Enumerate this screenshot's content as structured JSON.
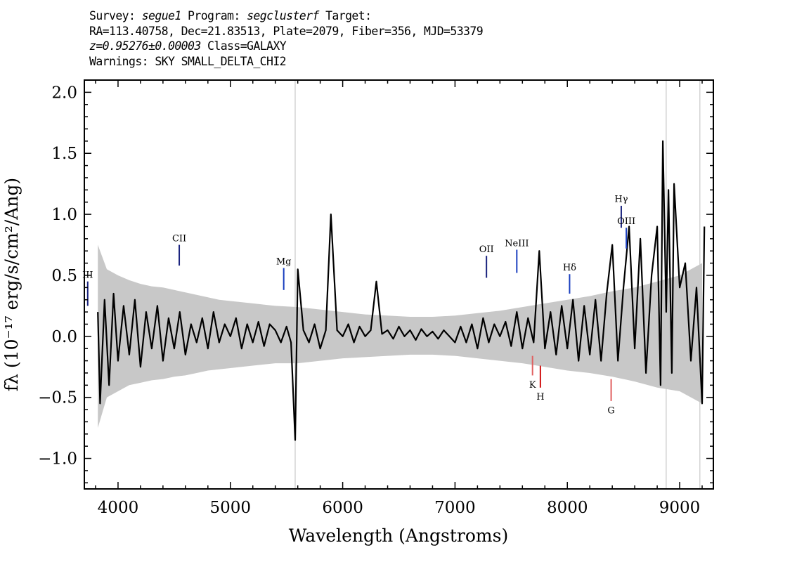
{
  "header": {
    "survey_label": "Survey:",
    "survey": "segue1",
    "program_label": "Program:",
    "program": "segclusterf",
    "target_label": "Target:",
    "coords_line": "RA=113.40758, Dec=21.83513, Plate=2079, Fiber=356, MJD=53379",
    "redshift": "z=0.95276±0.00003",
    "class_text": "Class=GALAXY",
    "warnings": "Warnings: SKY SMALL_DELTA_CHI2"
  },
  "chart_data": {
    "type": "line",
    "title": "",
    "xlabel": "Wavelength (Angstroms)",
    "ylabel": "fλ (10⁻¹⁷ erg/s/cm²/Ang)",
    "xlim": [
      3700,
      9300
    ],
    "ylim": [
      -1.25,
      2.1
    ],
    "x_ticks": [
      4000,
      5000,
      6000,
      7000,
      8000,
      9000
    ],
    "x_tick_labels": [
      "4000",
      "5000",
      "6000",
      "7000",
      "8000",
      "9000"
    ],
    "y_ticks": [
      -1.0,
      -0.5,
      0.0,
      0.5,
      1.0,
      1.5,
      2.0
    ],
    "y_tick_labels": [
      "−1.0",
      "−0.5",
      "0.0",
      "0.5",
      "1.0",
      "1.5",
      "2.0"
    ],
    "grid": false,
    "series": [
      {
        "role": "error_band",
        "color": "#c8c8c8",
        "x": [
          3820,
          3900,
          4000,
          4100,
          4200,
          4300,
          4400,
          4500,
          4600,
          4700,
          4800,
          4900,
          5000,
          5200,
          5400,
          5600,
          5800,
          6000,
          6200,
          6400,
          6600,
          6800,
          7000,
          7200,
          7400,
          7600,
          7800,
          8000,
          8200,
          8400,
          8600,
          8800,
          9000,
          9200
        ],
        "lower": [
          -0.75,
          -0.5,
          -0.45,
          -0.4,
          -0.38,
          -0.36,
          -0.35,
          -0.33,
          -0.32,
          -0.3,
          -0.28,
          -0.27,
          -0.26,
          -0.24,
          -0.22,
          -0.22,
          -0.2,
          -0.18,
          -0.17,
          -0.16,
          -0.15,
          -0.15,
          -0.16,
          -0.18,
          -0.2,
          -0.22,
          -0.25,
          -0.28,
          -0.3,
          -0.33,
          -0.37,
          -0.42,
          -0.45,
          -0.55
        ],
        "upper": [
          0.75,
          0.55,
          0.5,
          0.46,
          0.43,
          0.41,
          0.4,
          0.38,
          0.36,
          0.34,
          0.32,
          0.3,
          0.29,
          0.27,
          0.25,
          0.24,
          0.22,
          0.2,
          0.18,
          0.17,
          0.16,
          0.16,
          0.17,
          0.19,
          0.21,
          0.24,
          0.27,
          0.3,
          0.33,
          0.37,
          0.4,
          0.45,
          0.5,
          0.6
        ]
      },
      {
        "role": "flux",
        "color": "#000000",
        "x": [
          3820,
          3840,
          3880,
          3920,
          3960,
          4000,
          4050,
          4100,
          4150,
          4200,
          4250,
          4300,
          4350,
          4400,
          4450,
          4500,
          4550,
          4600,
          4650,
          4700,
          4750,
          4800,
          4850,
          4900,
          4950,
          5000,
          5050,
          5100,
          5150,
          5200,
          5250,
          5300,
          5350,
          5400,
          5450,
          5500,
          5540,
          5577,
          5600,
          5650,
          5700,
          5750,
          5800,
          5850,
          5895,
          5950,
          6000,
          6050,
          6100,
          6150,
          6200,
          6250,
          6300,
          6350,
          6400,
          6450,
          6500,
          6550,
          6600,
          6650,
          6700,
          6750,
          6800,
          6850,
          6900,
          6950,
          7000,
          7050,
          7100,
          7150,
          7200,
          7250,
          7300,
          7350,
          7400,
          7450,
          7500,
          7550,
          7600,
          7650,
          7700,
          7750,
          7800,
          7850,
          7900,
          7950,
          8000,
          8050,
          8100,
          8150,
          8200,
          8250,
          8300,
          8350,
          8400,
          8450,
          8500,
          8550,
          8600,
          8650,
          8700,
          8750,
          8800,
          8830,
          8850,
          8880,
          8900,
          8930,
          8950,
          9000,
          9050,
          9100,
          9150,
          9200,
          9220
        ],
        "y": [
          0.2,
          -0.55,
          0.3,
          -0.4,
          0.35,
          -0.2,
          0.25,
          -0.15,
          0.3,
          -0.25,
          0.2,
          -0.1,
          0.25,
          -0.2,
          0.15,
          -0.1,
          0.2,
          -0.15,
          0.1,
          -0.05,
          0.15,
          -0.1,
          0.2,
          -0.05,
          0.1,
          0.0,
          0.15,
          -0.1,
          0.1,
          -0.05,
          0.12,
          -0.08,
          0.1,
          0.05,
          -0.05,
          0.08,
          -0.05,
          -0.85,
          0.55,
          0.05,
          -0.05,
          0.1,
          -0.1,
          0.05,
          1.0,
          0.05,
          0.0,
          0.1,
          -0.05,
          0.08,
          0.0,
          0.05,
          0.45,
          0.02,
          0.05,
          -0.02,
          0.08,
          0.0,
          0.05,
          -0.03,
          0.06,
          0.0,
          0.04,
          -0.02,
          0.05,
          0.0,
          -0.05,
          0.08,
          -0.05,
          0.1,
          -0.1,
          0.15,
          -0.05,
          0.1,
          0.0,
          0.12,
          -0.08,
          0.2,
          -0.1,
          0.15,
          -0.05,
          0.7,
          -0.1,
          0.2,
          -0.15,
          0.25,
          -0.1,
          0.3,
          -0.2,
          0.25,
          -0.15,
          0.3,
          -0.2,
          0.35,
          0.75,
          -0.2,
          0.4,
          0.9,
          -0.1,
          0.8,
          -0.3,
          0.5,
          0.9,
          -0.4,
          1.6,
          0.2,
          1.2,
          -0.3,
          1.25,
          0.4,
          0.6,
          -0.2,
          0.4,
          -0.55,
          0.9
        ]
      }
    ],
    "spectral_lines": [
      {
        "label": "III",
        "x": 3730,
        "y_low": 0.25,
        "y_high": 0.45,
        "color": "#1a237e",
        "label_y": 0.48
      },
      {
        "label": "CII",
        "x": 4545,
        "y_low": 0.58,
        "y_high": 0.75,
        "color": "#1a237e",
        "label_y": 0.78
      },
      {
        "label": "Mg",
        "x": 5475,
        "y_low": 0.38,
        "y_high": 0.56,
        "color": "#1a3fbf",
        "label_y": 0.59
      },
      {
        "label": "OII",
        "x": 7280,
        "y_low": 0.48,
        "y_high": 0.66,
        "color": "#1a237e",
        "label_y": 0.69
      },
      {
        "label": "NeIII",
        "x": 7550,
        "y_low": 0.52,
        "y_high": 0.71,
        "color": "#1a3fbf",
        "label_y": 0.74
      },
      {
        "label": "Hδ",
        "x": 8020,
        "y_low": 0.35,
        "y_high": 0.51,
        "color": "#1a3fbf",
        "label_y": 0.54
      },
      {
        "label": "Hγ",
        "x": 8480,
        "y_low": 0.89,
        "y_high": 1.07,
        "color": "#1a237e",
        "label_y": 1.1
      },
      {
        "label": "OIII",
        "x": 8525,
        "y_low": 0.72,
        "y_high": 0.89,
        "color": "#1a3fbf",
        "label_y": 0.92
      },
      {
        "label": "K",
        "x": 7690,
        "y_low": -0.32,
        "y_high": -0.16,
        "color": "#e06060",
        "label_y": -0.42
      },
      {
        "label": "H",
        "x": 7760,
        "y_low": -0.42,
        "y_high": -0.24,
        "color": "#d01010",
        "label_y": -0.52
      },
      {
        "label": "G",
        "x": 8390,
        "y_low": -0.53,
        "y_high": -0.35,
        "color": "#e06060",
        "label_y": -0.63
      }
    ],
    "sky_lines": [
      5577,
      8880,
      9180
    ]
  }
}
